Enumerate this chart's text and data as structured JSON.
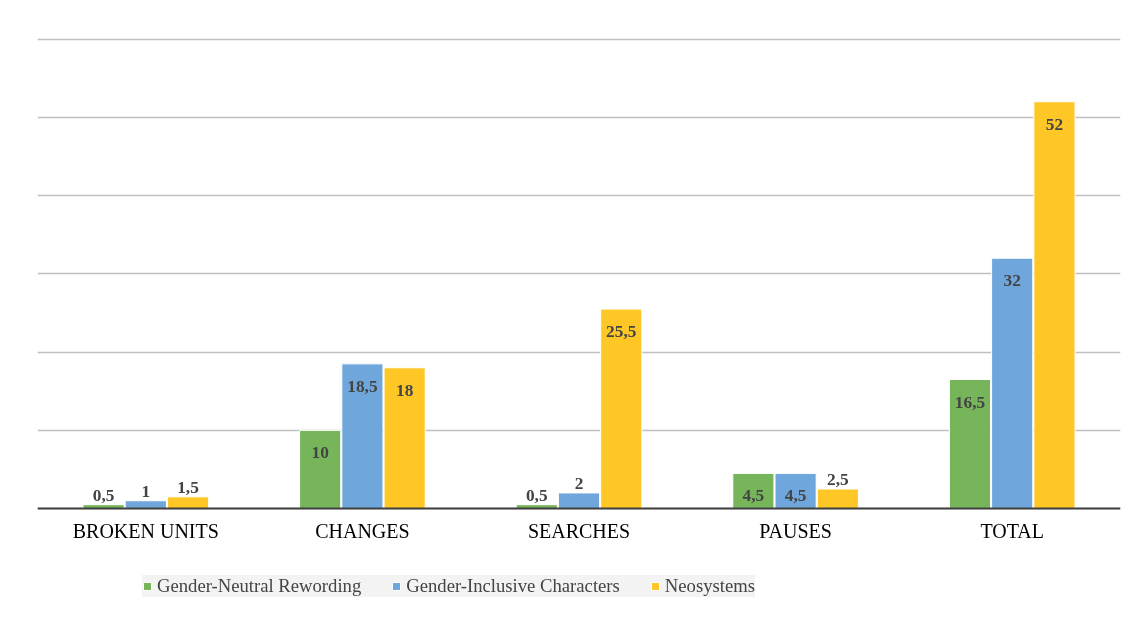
{
  "chart_data": {
    "type": "bar",
    "categories": [
      "BROKEN UNITS",
      "CHANGES",
      "SEARCHES",
      "PAUSES",
      "TOTAL"
    ],
    "series": [
      {
        "name": "Gender-Neutral Rewording",
        "color": "#77b55a",
        "values": [
          0.5,
          10,
          0.5,
          4.5,
          16.5
        ],
        "value_labels": [
          "0,5",
          "10",
          "0,5",
          "4,5",
          "16,5"
        ]
      },
      {
        "name": "Gender-Inclusive Characters",
        "color": "#6fa6dc",
        "values": [
          1,
          18.5,
          2,
          4.5,
          32
        ],
        "value_labels": [
          "1",
          "18,5",
          "2",
          "4,5",
          "32"
        ]
      },
      {
        "name": "Neosystems",
        "color": "#ffc726",
        "values": [
          1.5,
          18,
          25.5,
          2.5,
          52
        ],
        "value_labels": [
          "1,5",
          "18",
          "25,5",
          "2,5",
          "52"
        ]
      }
    ],
    "ylim": [
      0,
      60
    ],
    "yticks": [
      {
        "value": 0,
        "label": null
      },
      {
        "value": 10,
        "label": null
      },
      {
        "value": 20,
        "label": null
      },
      {
        "value": 30,
        "label": null
      },
      {
        "value": 40,
        "label": null
      },
      {
        "value": 50,
        "label": null
      },
      {
        "value": 60,
        "label": null
      }
    ],
    "tick_labels": "x",
    "grid": "y",
    "legend": "bottom"
  }
}
